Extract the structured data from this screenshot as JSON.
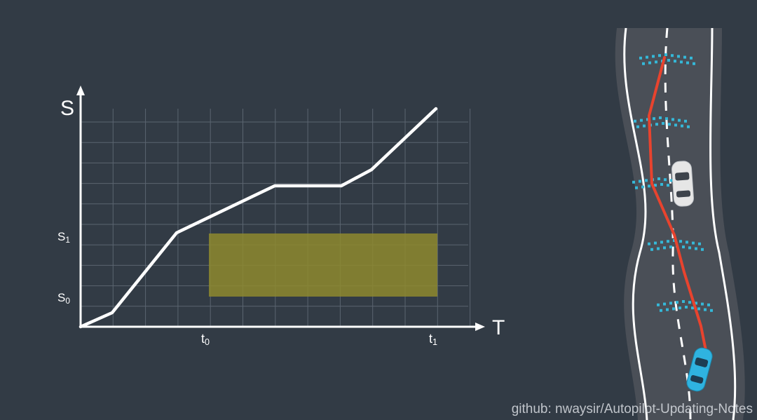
{
  "st_chart": {
    "y_axis_label": "S",
    "x_axis_label": "T",
    "y_ticks": {
      "s0": "S0",
      "s1": "S1"
    },
    "x_ticks": {
      "t0": "t0",
      "t1": "t1"
    },
    "colors": {
      "background": "#323b45",
      "grid": "#5b6570",
      "axis": "#ffffff",
      "trajectory": "#ffffff",
      "obstacle_region": "#8e8a2e"
    }
  },
  "road_scene": {
    "colors": {
      "road": "#4a4f57",
      "lane_lines": "#ffffff",
      "planned_path": "#e8432e",
      "sample_points": "#35b8d8",
      "ego_car": "#2fb3e0",
      "other_car": "#e6e6e6"
    }
  },
  "watermark": "github: nwaysir/Autopilot-Updating-Notes"
}
